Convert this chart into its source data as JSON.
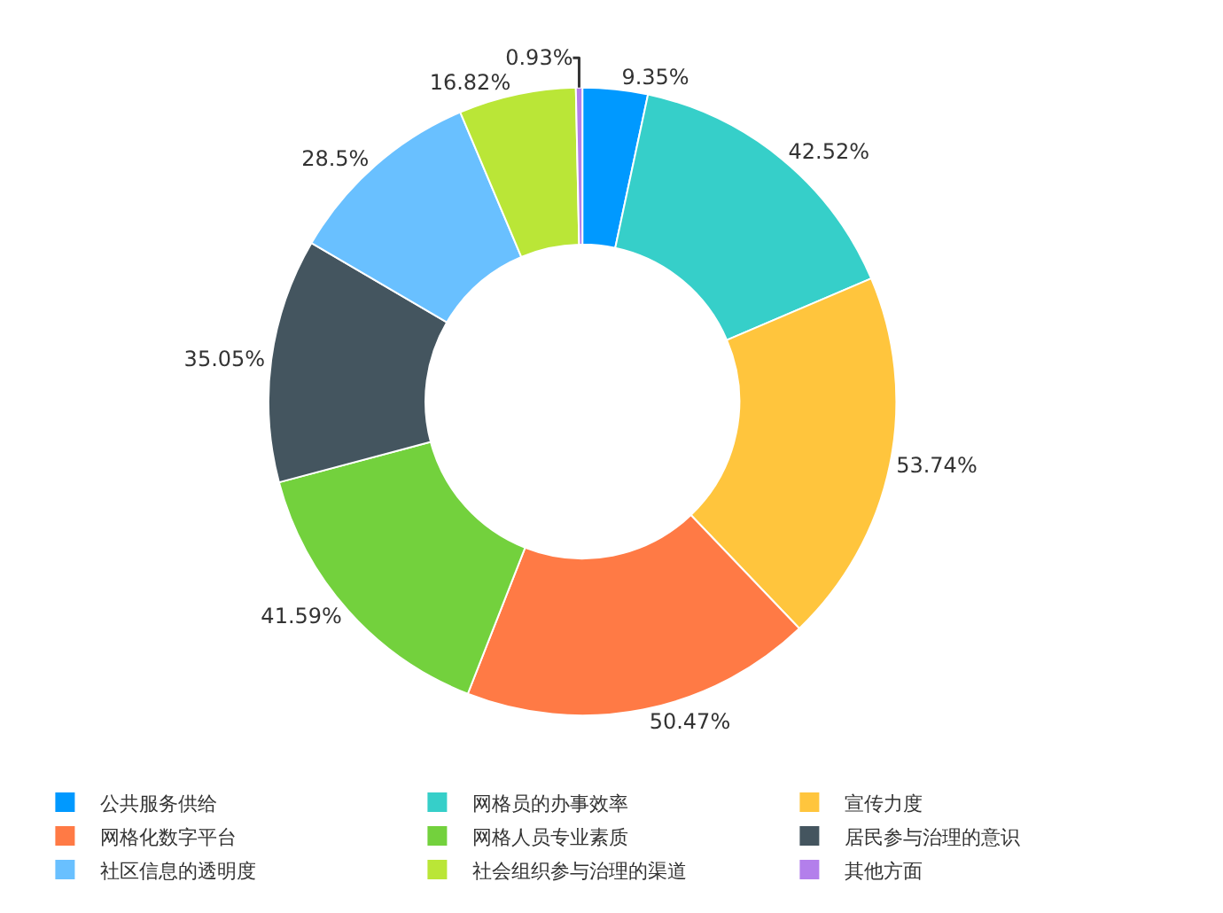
{
  "chart_data": {
    "type": "donut",
    "categories": [
      "公共服务供给",
      "网格员的办事效率",
      "宣传力度",
      "网格化数字平台",
      "网格人员专业素质",
      "居民参与治理的意识",
      "社区信息的透明度",
      "社会组织参与治理的渠道",
      "其他方面"
    ],
    "values": [
      9.35,
      42.52,
      53.74,
      50.47,
      41.59,
      35.05,
      28.5,
      16.82,
      0.93
    ],
    "value_labels": [
      "9.35%",
      "42.52%",
      "53.74%",
      "50.47%",
      "41.59%",
      "35.05%",
      "28.5%",
      "16.82%",
      "0.93%"
    ],
    "colors": [
      "#0099ff",
      "#36cfc9",
      "#ffc53d",
      "#ff7a45",
      "#73d13d",
      "#44555f",
      "#69c0ff",
      "#bae637",
      "#b37feb"
    ],
    "legend": "bottom"
  }
}
